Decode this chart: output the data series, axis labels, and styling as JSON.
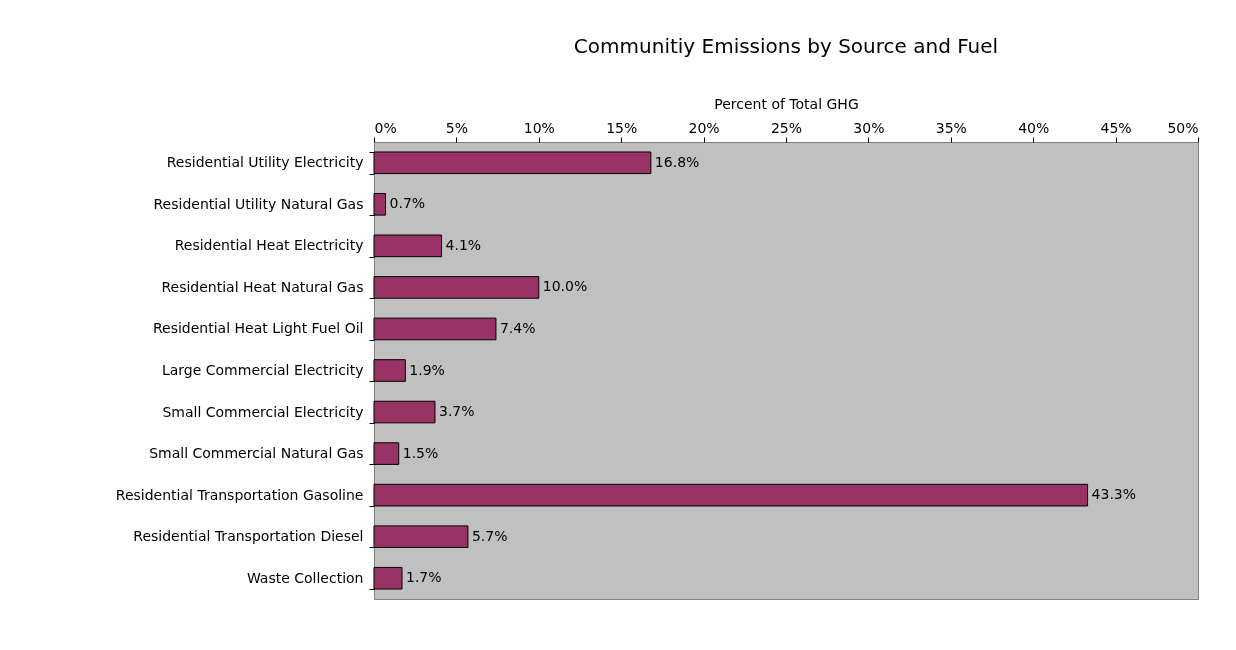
{
  "chart_data": {
    "type": "bar",
    "orientation": "horizontal",
    "title": "Communitiy Emissions by Source and Fuel",
    "xlabel": "Percent of Total GHG",
    "categories": [
      "Residential Utility Electricity",
      "Residential Utility Natural Gas",
      "Residential Heat Electricity",
      "Residential Heat Natural Gas",
      "Residential Heat Light Fuel Oil",
      "Large Commercial Electricity",
      "Small Commercial Electricity",
      "Small Commercial Natural Gas",
      "Residential Transportation Gasoline",
      "Residential Transportation Diesel",
      "Waste Collection"
    ],
    "values": [
      16.8,
      0.7,
      4.1,
      10.0,
      7.4,
      1.9,
      3.7,
      1.5,
      43.3,
      5.7,
      1.7
    ],
    "value_labels": [
      "16.8%",
      "0.7%",
      "4.1%",
      "10.0%",
      "7.4%",
      "1.9%",
      "3.7%",
      "1.5%",
      "43.3%",
      "5.7%",
      "1.7%"
    ],
    "color": "#993366",
    "xlim": [
      0,
      50
    ],
    "xticks": [
      {
        "value": 0,
        "label": "0%"
      },
      {
        "value": 5,
        "label": "5%"
      },
      {
        "value": 10,
        "label": "10%"
      },
      {
        "value": 15,
        "label": "15%"
      },
      {
        "value": 20,
        "label": "20%"
      },
      {
        "value": 25,
        "label": "25%"
      },
      {
        "value": 30,
        "label": "30%"
      },
      {
        "value": 35,
        "label": "35%"
      },
      {
        "value": 40,
        "label": "40%"
      },
      {
        "value": 45,
        "label": "45%"
      },
      {
        "value": 50,
        "label": "50%"
      }
    ],
    "grid": false
  }
}
